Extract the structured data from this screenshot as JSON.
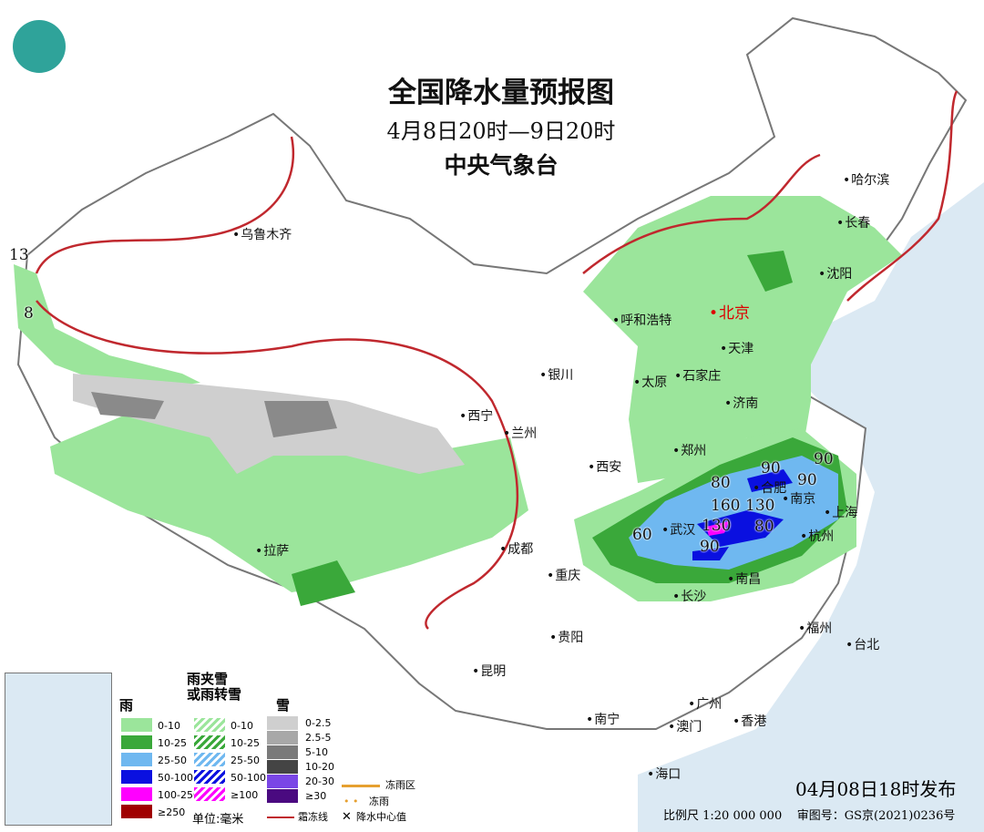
{
  "header": {
    "title": "全国降水量预报图",
    "period": "4月8日20时—9日20时",
    "issuer": "中央气象台"
  },
  "colors": {
    "rain_0_10": "#9be59b",
    "rain_10_25": "#3aa83a",
    "rain_25_50": "#6fb8f0",
    "rain_50_100": "#0a10e0",
    "rain_100_250": "#ff00ff",
    "rain_250": "#a00000",
    "snow_0_2_5": "#cfcfcf",
    "snow_2_5_5": "#a8a8a8",
    "snow_5_10": "#7a7a7a",
    "snow_10_20": "#444444",
    "snow_20_30": "#7a46e6",
    "snow_30": "#4a0a80",
    "sea": "#dbe9f3",
    "frost_line": "#c0282e"
  },
  "cities": [
    "乌鲁木齐",
    "哈尔滨",
    "长春",
    "沈阳",
    "呼和浩特",
    "北京",
    "天津",
    "银川",
    "太原",
    "石家庄",
    "济南",
    "西宁",
    "兰州",
    "郑州",
    "西安",
    "合肥",
    "南京",
    "上海",
    "武汉",
    "杭州",
    "成都",
    "拉萨",
    "重庆",
    "长沙",
    "南昌",
    "贵阳",
    "福州",
    "台北",
    "昆明",
    "南宁",
    "广州",
    "澳门",
    "香港",
    "海口"
  ],
  "precip_centers": [
    "13",
    "8",
    "60",
    "80",
    "90",
    "90",
    "90",
    "160",
    "130",
    "130",
    "80",
    "90"
  ],
  "legend": {
    "rain_title": "雨",
    "mixed_title": "雨夹雪\n或雨转雪",
    "snow_title": "雪",
    "rain": [
      "0-10",
      "10-25",
      "25-50",
      "50-100",
      "100-250",
      "≥250"
    ],
    "mixed": [
      "0-10",
      "10-25",
      "25-50",
      "50-100",
      "≥100"
    ],
    "snow": [
      "0-2.5",
      "2.5-5",
      "5-10",
      "10-20",
      "20-30",
      "≥30"
    ],
    "freezing_rain_area": "冻雨区",
    "freezing_rain": "冻雨",
    "frost_line": "霜冻线",
    "center_value": "降水中心值",
    "unit": "单位:毫米"
  },
  "footer": {
    "issued": "04月08日18时发布",
    "scale": "比例尺 1:20 000 000",
    "review_no": "审图号：GS京(2021)0236号"
  }
}
